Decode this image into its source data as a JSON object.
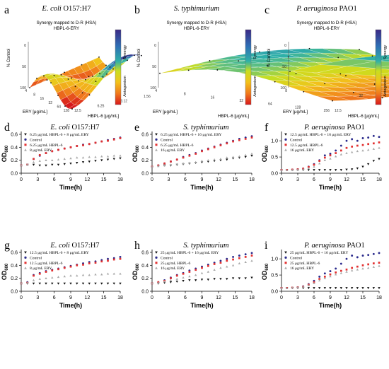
{
  "figure": {
    "panel_letters": [
      "a",
      "b",
      "c",
      "d",
      "e",
      "f",
      "g",
      "h",
      "i"
    ]
  },
  "colors": {
    "combo": "#111111",
    "control": "#2a2a8c",
    "hbpl": "#e23030",
    "ery": "#a8a8a8",
    "syn_top": "#3b2a86",
    "syn_mid": "#c9de1f",
    "syn_bot": "#d7191c"
  },
  "surfaces": [
    {
      "organism_italic": "E. coli",
      "organism_plain": "O157:H7",
      "plot_title_1": "Synergy mapped to D-R (HSA)",
      "plot_title_2": "HBPL-6-ERY",
      "z_label": "% Control",
      "legend_pos": "Synergy",
      "legend_neg": "Antagonism",
      "x_label": "ERY [μg/mL]",
      "y_label": "HBPL-6 [μg/mL]",
      "x_ticks": [
        "4",
        "8",
        "16",
        "32",
        "64",
        "128"
      ],
      "y_ticks": [
        "12.5",
        "6.25",
        "3.12",
        "1.56"
      ],
      "z_ticks": [
        "100",
        "50",
        "0"
      ]
    },
    {
      "organism_italic": "S. typhimurium",
      "organism_plain": "",
      "plot_title_1": "Synergy mapped to D-R (HSA)",
      "plot_title_2": "HBPL-6-ERY",
      "z_label": "% Control",
      "legend_pos": "Synergy",
      "legend_neg": "Antagonism",
      "x_label": "ERY [μg/mL]",
      "y_label": "HBPL-6 [μg/mL]",
      "x_ticks": [
        "4",
        "8",
        "16",
        "32",
        "64",
        "128",
        "256"
      ],
      "y_ticks": [
        "12.5",
        "25",
        "50",
        "100"
      ],
      "z_ticks": [
        "100",
        "50",
        "0"
      ]
    },
    {
      "organism_italic": "P. aeruginosa",
      "organism_plain": "PAO1",
      "plot_title_1": "Synergy mapped to D-R (HSA)",
      "plot_title_2": "HBPL-6-ERY",
      "z_label": "% Control",
      "legend_pos": "Synergy",
      "legend_neg": "Antagonism",
      "x_label": "ERY [μg/mL]",
      "y_label": "HBPL-6 [μg/mL]",
      "x_ticks": [
        "8",
        "32",
        "128",
        "512",
        "1024"
      ],
      "y_ticks": [
        "12.5",
        "25",
        "50",
        "100"
      ],
      "z_ticks": [
        "100",
        "50",
        "0"
      ]
    }
  ],
  "chart_data": [
    {
      "type": "line",
      "organism_italic": "E. coli",
      "organism_plain": "O157:H7",
      "xlabel": "Time(h)",
      "ylabel": "OD",
      "ylabel_sub": "600",
      "xlim": [
        0,
        18
      ],
      "ylim": [
        0,
        0.6
      ],
      "x_ticks": [
        0,
        3,
        6,
        9,
        12,
        15,
        18
      ],
      "y_ticks": [
        0.0,
        0.2,
        0.4,
        0.6
      ],
      "y_tick_labels": [
        "0.0",
        "0.2",
        "0.4",
        "0.6"
      ],
      "series": [
        {
          "name": "6.25 μg/mL HBPL-6 + 8 μg/mL ERY",
          "values": [
            0.12,
            0.13,
            0.13,
            0.12,
            0.12,
            0.13,
            0.13,
            0.14,
            0.15,
            0.16,
            0.17,
            0.18,
            0.19,
            0.2,
            0.21,
            0.22,
            0.23
          ]
        },
        {
          "name": "Control",
          "values": [
            0.12,
            0.13,
            0.22,
            0.27,
            0.31,
            0.34,
            0.36,
            0.38,
            0.4,
            0.42,
            0.44,
            0.45,
            0.47,
            0.49,
            0.51,
            0.53,
            0.55
          ]
        },
        {
          "name": "6.25 μg/mL HBPL-6",
          "values": [
            0.12,
            0.13,
            0.22,
            0.28,
            0.31,
            0.34,
            0.36,
            0.38,
            0.4,
            0.42,
            0.43,
            0.45,
            0.47,
            0.49,
            0.5,
            0.52,
            0.54
          ]
        },
        {
          "name": "8 μg/mL ERY",
          "values": [
            0.12,
            0.13,
            0.17,
            0.19,
            0.2,
            0.2,
            0.21,
            0.22,
            0.23,
            0.24,
            0.24,
            0.25,
            0.25,
            0.26,
            0.26,
            0.27,
            0.27
          ]
        }
      ]
    },
    {
      "type": "line",
      "organism_italic": "S. typhimurium",
      "organism_plain": "",
      "xlabel": "Time(h)",
      "ylabel": "OD",
      "ylabel_sub": "600",
      "xlim": [
        0,
        18
      ],
      "ylim": [
        0,
        0.6
      ],
      "x_ticks": [
        0,
        3,
        6,
        9,
        12,
        15,
        18
      ],
      "y_ticks": [
        0.0,
        0.2,
        0.4,
        0.6
      ],
      "y_tick_labels": [
        "0.0",
        "0.2",
        "0.4",
        "0.6"
      ],
      "series": [
        {
          "name": "6.25 μg/mL HBPL-6 + 16 μg/mL ERY",
          "values": [
            0.1,
            0.11,
            0.12,
            0.12,
            0.13,
            0.14,
            0.15,
            0.16,
            0.17,
            0.18,
            0.19,
            0.2,
            0.21,
            0.23,
            0.24,
            0.25,
            0.27
          ]
        },
        {
          "name": "Control",
          "values": [
            0.1,
            0.12,
            0.15,
            0.18,
            0.21,
            0.25,
            0.28,
            0.31,
            0.35,
            0.38,
            0.41,
            0.44,
            0.47,
            0.5,
            0.53,
            0.55,
            0.57
          ]
        },
        {
          "name": "6.25 μg/mL HBPL-6",
          "values": [
            0.1,
            0.12,
            0.15,
            0.18,
            0.21,
            0.24,
            0.27,
            0.3,
            0.34,
            0.37,
            0.4,
            0.43,
            0.46,
            0.49,
            0.51,
            0.53,
            0.55
          ]
        },
        {
          "name": "16 μg/mL ERY",
          "values": [
            0.1,
            0.11,
            0.12,
            0.13,
            0.14,
            0.15,
            0.16,
            0.17,
            0.19,
            0.2,
            0.21,
            0.22,
            0.24,
            0.25,
            0.26,
            0.28,
            0.3
          ]
        }
      ]
    },
    {
      "type": "line",
      "organism_italic": "P. aeruginosa",
      "organism_plain": "PAO1",
      "xlabel": "Time(h)",
      "ylabel": "OD",
      "ylabel_sub": "600",
      "xlim": [
        0,
        18
      ],
      "ylim": [
        0,
        1.2
      ],
      "x_ticks": [
        0,
        3,
        6,
        9,
        12,
        15,
        18
      ],
      "y_ticks": [
        0.0,
        0.5,
        1.0
      ],
      "y_tick_labels": [
        "0.0",
        "0.5",
        "1.0"
      ],
      "series": [
        {
          "name": "12.5 μg/mL HBPL-6 + 16 μg/mL ERY",
          "values": [
            0.1,
            0.1,
            0.1,
            0.1,
            0.1,
            0.1,
            0.1,
            0.1,
            0.1,
            0.1,
            0.1,
            0.1,
            0.11,
            0.12,
            0.15,
            0.2,
            0.28,
            0.38,
            0.44
          ]
        },
        {
          "name": "Control",
          "values": [
            0.1,
            0.1,
            0.11,
            0.12,
            0.14,
            0.2,
            0.28,
            0.4,
            0.55,
            0.6,
            0.7,
            0.85,
            1.0,
            1.05,
            1.0,
            1.08,
            1.1,
            1.15,
            1.12
          ]
        },
        {
          "name": "12.5 μg/mL HBPL-6",
          "values": [
            0.1,
            0.1,
            0.11,
            0.12,
            0.14,
            0.19,
            0.26,
            0.38,
            0.48,
            0.55,
            0.62,
            0.7,
            0.78,
            0.82,
            0.85,
            0.87,
            0.9,
            0.92,
            0.95
          ]
        },
        {
          "name": "16 μg/mL ERY",
          "values": [
            0.1,
            0.1,
            0.1,
            0.11,
            0.12,
            0.15,
            0.2,
            0.3,
            0.4,
            0.45,
            0.52,
            0.58,
            0.62,
            0.65,
            0.68,
            0.7,
            0.72,
            0.75,
            0.78
          ]
        }
      ]
    },
    {
      "type": "line",
      "organism_italic": "E. coli",
      "organism_plain": "O157:H7",
      "xlabel": "Time(h)",
      "ylabel": "OD",
      "ylabel_sub": "600",
      "xlim": [
        0,
        18
      ],
      "ylim": [
        0,
        0.6
      ],
      "x_ticks": [
        0,
        3,
        6,
        9,
        12,
        15,
        18
      ],
      "y_ticks": [
        0.0,
        0.2,
        0.4,
        0.6
      ],
      "y_tick_labels": [
        "0.0",
        "0.2",
        "0.4",
        "0.6"
      ],
      "series": [
        {
          "name": "12.5 μg/mL HBPL-6 + 8 μg/mL ERY",
          "values": [
            0.12,
            0.12,
            0.12,
            0.12,
            0.12,
            0.12,
            0.12,
            0.12,
            0.12,
            0.12,
            0.12,
            0.12,
            0.12,
            0.12,
            0.12,
            0.12,
            0.12
          ]
        },
        {
          "name": "Control",
          "values": [
            0.12,
            0.14,
            0.25,
            0.28,
            0.31,
            0.33,
            0.35,
            0.37,
            0.39,
            0.41,
            0.43,
            0.45,
            0.46,
            0.48,
            0.5,
            0.51,
            0.53
          ]
        },
        {
          "name": "12.5 μg/mL HBPL-6",
          "values": [
            0.12,
            0.13,
            0.24,
            0.27,
            0.3,
            0.32,
            0.34,
            0.36,
            0.38,
            0.4,
            0.41,
            0.43,
            0.44,
            0.46,
            0.47,
            0.49,
            0.5
          ]
        },
        {
          "name": "8 μg/mL ERY",
          "values": [
            0.12,
            0.13,
            0.17,
            0.19,
            0.2,
            0.21,
            0.22,
            0.23,
            0.24,
            0.24,
            0.25,
            0.25,
            0.26,
            0.26,
            0.27,
            0.27,
            0.27
          ]
        }
      ]
    },
    {
      "type": "line",
      "organism_italic": "S. typhimurium",
      "organism_plain": "",
      "xlabel": "Time(h)",
      "ylabel": "OD",
      "ylabel_sub": "600",
      "xlim": [
        0,
        18
      ],
      "ylim": [
        0,
        0.6
      ],
      "x_ticks": [
        0,
        3,
        6,
        9,
        12,
        15,
        18
      ],
      "y_ticks": [
        0.0,
        0.2,
        0.4,
        0.6
      ],
      "y_tick_labels": [
        "0.0",
        "0.2",
        "0.4",
        "0.6"
      ],
      "series": [
        {
          "name": "25 μg/mL HBPL-6 + 16 μg/mL ERY",
          "values": [
            0.12,
            0.12,
            0.13,
            0.14,
            0.15,
            0.16,
            0.17,
            0.17,
            0.18,
            0.18,
            0.19,
            0.19,
            0.19,
            0.2,
            0.2,
            0.2,
            0.21
          ]
        },
        {
          "name": "Control",
          "values": [
            0.12,
            0.14,
            0.17,
            0.21,
            0.25,
            0.28,
            0.32,
            0.35,
            0.38,
            0.41,
            0.44,
            0.47,
            0.5,
            0.53,
            0.55,
            0.57,
            0.59
          ]
        },
        {
          "name": "25 μg/mL HBPL-6",
          "values": [
            0.12,
            0.14,
            0.16,
            0.2,
            0.24,
            0.27,
            0.3,
            0.33,
            0.36,
            0.39,
            0.42,
            0.44,
            0.47,
            0.49,
            0.51,
            0.53,
            0.55
          ]
        },
        {
          "name": "16 μg/mL ERY",
          "values": [
            0.12,
            0.13,
            0.15,
            0.17,
            0.19,
            0.21,
            0.23,
            0.25,
            0.28,
            0.3,
            0.33,
            0.36,
            0.38,
            0.4,
            0.43,
            0.45,
            0.47
          ]
        }
      ]
    },
    {
      "type": "line",
      "organism_italic": "P. aeruginosa",
      "organism_plain": "PAO1",
      "xlabel": "Time(h)",
      "ylabel": "OD",
      "ylabel_sub": "600",
      "xlim": [
        0,
        18
      ],
      "ylim": [
        0,
        1.2
      ],
      "x_ticks": [
        0,
        3,
        6,
        9,
        12,
        15,
        18
      ],
      "y_ticks": [
        0.0,
        0.5,
        1.0
      ],
      "y_tick_labels": [
        "0.0",
        "0.5",
        "1.0"
      ],
      "series": [
        {
          "name": "25 μg/mL HBPL-6 + 16 μg/mL ERY",
          "values": [
            0.1,
            0.1,
            0.1,
            0.1,
            0.1,
            0.1,
            0.1,
            0.1,
            0.1,
            0.1,
            0.1,
            0.1,
            0.1,
            0.1,
            0.1,
            0.1,
            0.1,
            0.1,
            0.1
          ]
        },
        {
          "name": "Control",
          "values": [
            0.1,
            0.1,
            0.11,
            0.12,
            0.15,
            0.22,
            0.32,
            0.45,
            0.55,
            0.62,
            0.7,
            0.85,
            1.0,
            1.1,
            1.05,
            1.1,
            1.12,
            1.15,
            1.18
          ]
        },
        {
          "name": "25 μg/mL HBPL-6",
          "values": [
            0.1,
            0.1,
            0.11,
            0.12,
            0.14,
            0.2,
            0.28,
            0.38,
            0.45,
            0.52,
            0.58,
            0.63,
            0.67,
            0.72,
            0.76,
            0.8,
            0.83,
            0.86,
            0.88
          ]
        },
        {
          "name": "16 μg/mL ERY",
          "values": [
            0.1,
            0.1,
            0.11,
            0.12,
            0.14,
            0.18,
            0.25,
            0.33,
            0.4,
            0.46,
            0.52,
            0.56,
            0.6,
            0.64,
            0.67,
            0.7,
            0.72,
            0.75,
            0.78
          ]
        }
      ]
    }
  ]
}
